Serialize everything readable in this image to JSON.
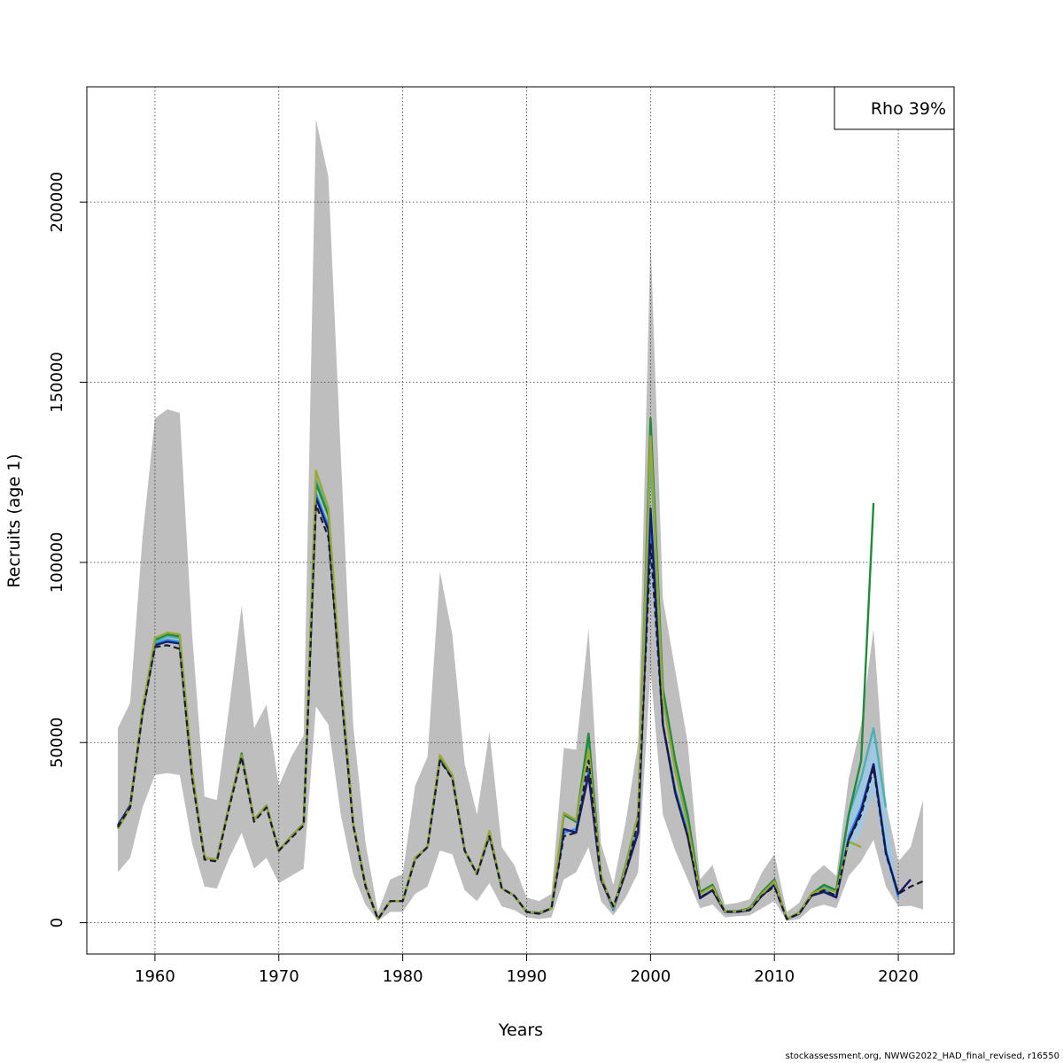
{
  "chart_data": {
    "type": "line",
    "title": "",
    "xlabel": "Years",
    "ylabel": "Recruits (age 1)",
    "xlim": [
      1954.5,
      2024.5
    ],
    "ylim": [
      -8700,
      232000
    ],
    "xticks": [
      1960,
      1970,
      1980,
      1990,
      2000,
      2010,
      2020
    ],
    "yticks": [
      0,
      50000,
      100000,
      150000,
      200000
    ],
    "ytick_labels": [
      "0",
      "50000",
      "100000",
      "150000",
      "200000"
    ],
    "grid": true,
    "legend_text": "Rho 39%",
    "legend_position": "top-right",
    "colors": {
      "band": "#bebebe",
      "band_inner": "#87cefa",
      "base": "#1a1a2e",
      "peels": [
        "#1e90ff",
        "#191970",
        "#1f8a3a",
        "#48b1b1",
        "#9aa832"
      ]
    },
    "years": [
      1957,
      1958,
      1959,
      1960,
      1961,
      1962,
      1963,
      1964,
      1965,
      1966,
      1967,
      1968,
      1969,
      1970,
      1971,
      1972,
      1973,
      1974,
      1975,
      1976,
      1977,
      1978,
      1979,
      1980,
      1981,
      1982,
      1983,
      1984,
      1985,
      1986,
      1987,
      1988,
      1989,
      1990,
      1991,
      1992,
      1993,
      1994,
      1995,
      1996,
      1997,
      1998,
      1999,
      2000,
      2001,
      2002,
      2003,
      2004,
      2005,
      2006,
      2007,
      2008,
      2009,
      2010,
      2011,
      2012,
      2013,
      2014,
      2015,
      2016,
      2017,
      2018,
      2019,
      2020,
      2021,
      2022
    ],
    "ci_upper": [
      54000,
      61000,
      107000,
      140000,
      142500,
      141500,
      80000,
      35000,
      34000,
      60000,
      88000,
      54000,
      60500,
      38000,
      46000,
      52000,
      223000,
      207000,
      130000,
      55000,
      22000,
      3000,
      12000,
      13500,
      38000,
      46000,
      97500,
      80000,
      44000,
      30000,
      53000,
      21000,
      16000,
      7000,
      6000,
      8000,
      48500,
      48000,
      81500,
      22000,
      10500,
      28000,
      50000,
      190000,
      90000,
      70000,
      50000,
      12000,
      16000,
      5000,
      5500,
      6500,
      14000,
      19000,
      3000,
      5500,
      13000,
      16000,
      13000,
      40000,
      55000,
      81500,
      33000,
      17000,
      21000,
      34000
    ],
    "ci_lower": [
      14000,
      18000,
      32000,
      41000,
      41500,
      41000,
      22000,
      10000,
      9500,
      18000,
      25000,
      15000,
      18000,
      11000,
      13000,
      15000,
      60000,
      55000,
      30000,
      13500,
      5000,
      500,
      3000,
      3000,
      8000,
      10000,
      20000,
      19000,
      9000,
      6000,
      11000,
      4500,
      3500,
      1500,
      1000,
      1500,
      12000,
      14000,
      21000,
      6000,
      2000,
      7000,
      14000,
      70000,
      30000,
      20000,
      12000,
      4000,
      5000,
      1500,
      1800,
      2000,
      4000,
      6000,
      500,
      1000,
      4000,
      5000,
      4000,
      13000,
      17000,
      23000,
      10000,
      4500,
      4700,
      3700
    ],
    "series": [
      {
        "color": "#1a1a2e",
        "dashed": true,
        "start_year": 1957,
        "values": [
          26500,
          32000,
          58000,
          76500,
          77000,
          76000,
          40000,
          17500,
          17000,
          32000,
          46000,
          28000,
          32000,
          20000,
          23500,
          27000,
          116000,
          107000,
          65000,
          27000,
          10000,
          1000,
          6000,
          6000,
          17500,
          21000,
          45000,
          40000,
          20000,
          13500,
          24000,
          9500,
          7500,
          3000,
          2500,
          4000,
          24000,
          25000,
          45000,
          12000,
          4500,
          14000,
          28000,
          105000,
          55000,
          36000,
          24000,
          7000,
          9000,
          3000,
          3000,
          3500,
          7500,
          10000,
          1000,
          2500,
          7500,
          9000,
          7500,
          23000,
          30000,
          43000,
          19000,
          8000,
          10000,
          11500
        ]
      },
      {
        "color": "#1e90ff",
        "dashed": false,
        "start_year": 1957,
        "values": [
          27000,
          32500,
          58500,
          77500,
          78500,
          78000,
          41000,
          18000,
          17500,
          32500,
          46500,
          28500,
          32500,
          20000,
          24000,
          27500,
          119000,
          110000,
          67000,
          27500,
          10300,
          1000,
          6000,
          6000,
          17800,
          21000,
          45500,
          40500,
          20000,
          13500,
          24500,
          9500,
          7500,
          3000,
          2500,
          4000,
          25000,
          26000,
          42000,
          12500,
          3500,
          15000,
          26000,
          110000,
          55000,
          37000,
          25000,
          7000,
          9000,
          3000,
          3000,
          3500,
          7500,
          10500,
          1000,
          2500,
          7500,
          9000,
          7500,
          24000,
          32000,
          44000,
          20000,
          7000
        ]
      },
      {
        "color": "#191970",
        "dashed": false,
        "start_year": 1957,
        "values": [
          27000,
          32500,
          58500,
          77000,
          78000,
          77500,
          41000,
          18000,
          17500,
          32500,
          46500,
          28500,
          32500,
          20000,
          24000,
          27500,
          118000,
          109000,
          66000,
          27500,
          10200,
          1000,
          6000,
          6000,
          17800,
          21000,
          45500,
          40500,
          20000,
          13500,
          24500,
          9500,
          7500,
          3000,
          2500,
          4000,
          26000,
          25000,
          41000,
          12000,
          4000,
          14000,
          25000,
          115000,
          55000,
          36000,
          24000,
          6800,
          9000,
          3000,
          3000,
          3500,
          7500,
          10500,
          1000,
          2500,
          7500,
          8500,
          7000,
          23000,
          31000,
          44000,
          19500,
          8000,
          12000
        ]
      },
      {
        "color": "#1f8a3a",
        "dashed": false,
        "start_year": 1957,
        "values": [
          26500,
          32000,
          59000,
          78500,
          80000,
          79500,
          42000,
          18000,
          17500,
          32500,
          47000,
          28500,
          32500,
          20000,
          24000,
          27500,
          122000,
          113000,
          68000,
          27500,
          10500,
          1000,
          6000,
          6000,
          18000,
          21000,
          46000,
          41000,
          20000,
          13500,
          25000,
          9500,
          7500,
          3000,
          2800,
          4000,
          30000,
          28000,
          52500,
          13000,
          4000,
          16000,
          30000,
          140000,
          65000,
          45000,
          30000,
          8500,
          10500,
          3200,
          3200,
          4000,
          8500,
          12000,
          1000,
          2800,
          8000,
          10500,
          9000,
          30000,
          45000,
          116500
        ]
      },
      {
        "color": "#48b1b1",
        "dashed": false,
        "start_year": 1957,
        "values": [
          26500,
          32000,
          59000,
          78000,
          79500,
          79000,
          41500,
          18000,
          17500,
          32500,
          46500,
          28500,
          32500,
          20000,
          24000,
          27500,
          123000,
          114000,
          67500,
          27500,
          10400,
          1000,
          6000,
          6000,
          18000,
          21000,
          46000,
          41000,
          20000,
          13500,
          25000,
          9500,
          7500,
          3000,
          2700,
          4000,
          30000,
          28500,
          50000,
          13000,
          4000,
          15500,
          30000,
          130000,
          62000,
          42000,
          28000,
          8000,
          10000,
          3100,
          3100,
          3800,
          8000,
          11500,
          1000,
          2700,
          8000,
          10000,
          8500,
          30000,
          40000,
          54000,
          32000
        ]
      },
      {
        "color": "#9aa832",
        "dashed": false,
        "start_year": 1957,
        "values": [
          26000,
          32000,
          59500,
          79000,
          80500,
          80000,
          42000,
          18000,
          17500,
          32500,
          46500,
          28500,
          32500,
          20000,
          24000,
          27500,
          125500,
          115000,
          68000,
          27500,
          10500,
          1000,
          6000,
          6000,
          18000,
          21000,
          46500,
          41000,
          20000,
          13500,
          25500,
          9500,
          7500,
          3000,
          2700,
          4000,
          30500,
          28500,
          48000,
          13000,
          4000,
          15500,
          30000,
          135000,
          62000,
          42000,
          27000,
          8000,
          10000,
          3100,
          3100,
          3800,
          8000,
          11500,
          1000,
          2700,
          8000,
          9500,
          8500,
          22500,
          21000
        ]
      }
    ]
  },
  "footer": "stockassessment.org, NWWG2022_HAD_final_revised, r16550"
}
